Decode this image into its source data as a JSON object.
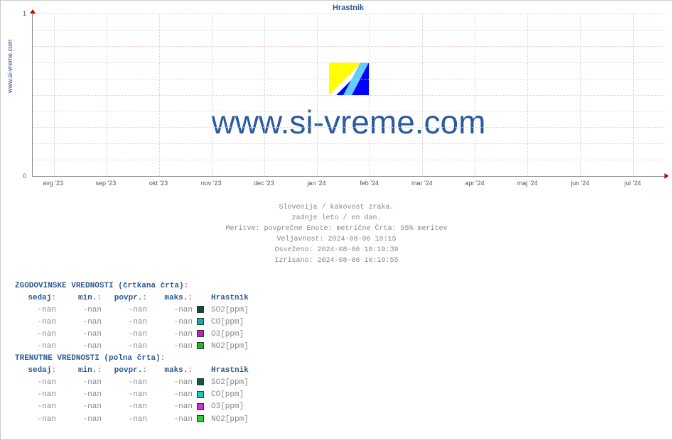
{
  "chart": {
    "title": "Hrastnik",
    "ylabel": "www.si-vreme.com",
    "watermark": "www.si-vreme.com",
    "ylim": [
      0,
      1
    ],
    "yticks": [
      0,
      1
    ],
    "xticks": [
      "avg '23",
      "sep '23",
      "okt '23",
      "nov '23",
      "dec '23",
      "jan '24",
      "feb '24",
      "mar '24",
      "apr '24",
      "maj '24",
      "jun '24",
      "jul '24"
    ],
    "background": "#ffffff",
    "grid_color_h": "#eecccc",
    "grid_color_v": "#ddcccc",
    "axis_color": "#888888",
    "arrow_color": "#cc0000",
    "title_color": "#2c5a8f",
    "watermark_color": "#2c5a9f",
    "watermark_fontsize": 46,
    "logo_colors": {
      "yellow": "#ffff00",
      "blue": "#0000ff",
      "cyan": "#66ccff"
    }
  },
  "meta": {
    "line1": "Slovenija / kakovost zraka.",
    "line2": "zadnje leto / en dan.",
    "line3": "Meritve: povprečne  Enote: metrične  Črta: 95% meritev",
    "line4": "Veljavnost: 2024-08-06 10:15",
    "line5": "Osveženo: 2024-08-06 10:19:39",
    "line6": "Izrisano: 2024-08-06 10:19:55"
  },
  "table": {
    "hist_title": "ZGODOVINSKE VREDNOSTI (črtkana črta)",
    "curr_title": "TRENUTNE VREDNOSTI (polna črta)",
    "headers": {
      "now": "sedaj",
      "min": "min.",
      "avg": "povpr.",
      "max": "maks.",
      "site": "Hrastnik"
    },
    "placeholder": "-nan",
    "hist_rows": [
      {
        "now": "-nan",
        "min": "-nan",
        "avg": "-nan",
        "max": "-nan",
        "color": "#0d5a4a",
        "label": "SO2[ppm]"
      },
      {
        "now": "-nan",
        "min": "-nan",
        "avg": "-nan",
        "max": "-nan",
        "color": "#1fc4c4",
        "label": "CO[ppm]"
      },
      {
        "now": "-nan",
        "min": "-nan",
        "avg": "-nan",
        "max": "-nan",
        "color": "#cc33cc",
        "label": "O3[ppm]"
      },
      {
        "now": "-nan",
        "min": "-nan",
        "avg": "-nan",
        "max": "-nan",
        "color": "#33cc33",
        "label": "NO2[ppm]"
      }
    ],
    "curr_rows": [
      {
        "now": "-nan",
        "min": "-nan",
        "avg": "-nan",
        "max": "-nan",
        "color": "#0d5a4a",
        "label": "SO2[ppm]"
      },
      {
        "now": "-nan",
        "min": "-nan",
        "avg": "-nan",
        "max": "-nan",
        "color": "#1fc4c4",
        "label": "CO[ppm]"
      },
      {
        "now": "-nan",
        "min": "-nan",
        "avg": "-nan",
        "max": "-nan",
        "color": "#cc33cc",
        "label": "O3[ppm]"
      },
      {
        "now": "-nan",
        "min": "-nan",
        "avg": "-nan",
        "max": "-nan",
        "color": "#33cc33",
        "label": "NO2[ppm]"
      }
    ]
  }
}
